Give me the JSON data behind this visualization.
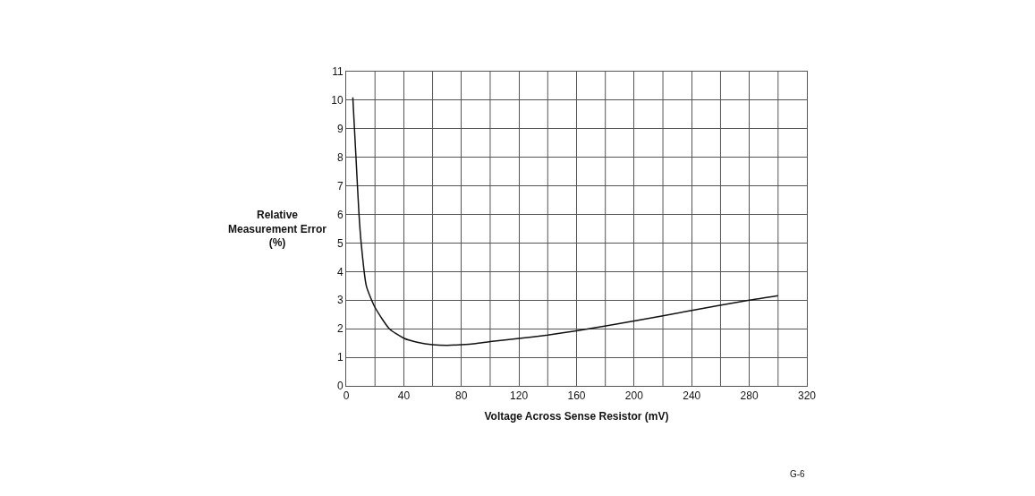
{
  "chart_data": {
    "type": "line",
    "xlabel": "Voltage Across Sense Resistor (mV)",
    "ylabel": "Relative\nMeasurement Error\n(%)",
    "annotations": [
      "G-6"
    ],
    "x": [
      4.6,
      6.8,
      8.9,
      10.4,
      14,
      20,
      30,
      40,
      50,
      60,
      70,
      80,
      90,
      100,
      120,
      140,
      160,
      200,
      240,
      280,
      300
    ],
    "series": [
      {
        "color": "#111111",
        "values": [
          10.1,
          8.0,
          6.0,
          5.0,
          3.5,
          2.75,
          2.0,
          1.67,
          1.52,
          1.44,
          1.42,
          1.44,
          1.48,
          1.55,
          1.66,
          1.78,
          1.93,
          2.27,
          2.64,
          3.0,
          3.16
        ]
      }
    ],
    "xlim": [
      0,
      320
    ],
    "xticks": [
      0,
      40,
      80,
      120,
      160,
      200,
      240,
      280,
      320
    ],
    "ylim": [
      0,
      11
    ],
    "yticks": [
      0,
      1,
      2,
      3,
      4,
      5,
      6,
      7,
      8,
      9,
      10,
      11
    ],
    "grid": true,
    "marker": "none",
    "line_style": "solid"
  }
}
